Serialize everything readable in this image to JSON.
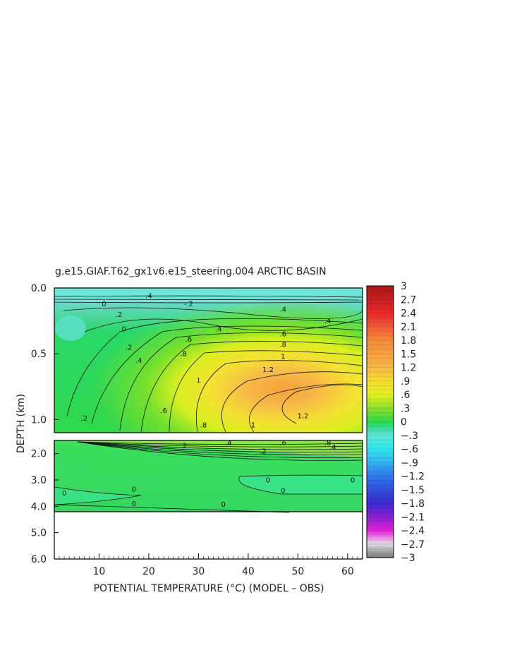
{
  "chart_data": {
    "type": "heatmap",
    "title": "g.e15.GIAF.T62_gx1v6.e15_steering.004 ARCTIC BASIN",
    "xlabel": "POTENTIAL TEMPERATURE (°C) (MODEL – OBS)",
    "ylabel": "DEPTH (km)",
    "xlim": [
      1,
      63
    ],
    "x_ticks": [
      "10",
      "20",
      "30",
      "40",
      "50",
      "60"
    ],
    "x_tick_values": [
      10,
      20,
      30,
      40,
      50,
      60
    ],
    "upper_panel": {
      "ylim": [
        0.0,
        1.1
      ],
      "y_ticks": [
        "0.0",
        "0.5",
        "1.0"
      ],
      "y_tick_values": [
        0.0,
        0.5,
        1.0
      ]
    },
    "lower_panel": {
      "ylim": [
        1.5,
        6.0
      ],
      "y_ticks": [
        "2.0",
        "3.0",
        "4.0",
        "5.0",
        "6.0"
      ],
      "y_tick_values": [
        2.0,
        3.0,
        4.0,
        5.0,
        6.0
      ]
    },
    "colorbar": {
      "labels": [
        "3",
        "2.7",
        "2.4",
        "2.1",
        "1.8",
        "1.5",
        "1.2",
        ".9",
        ".6",
        ".3",
        "0",
        "-.3",
        "-.6",
        "-.9",
        "-1.2",
        "-1.5",
        "-1.8",
        "-2.1",
        "-2.4",
        "-2.7",
        "-3"
      ],
      "min": -3,
      "max": 3
    },
    "contour_labels": [
      {
        "text": ".4",
        "x": 20,
        "y": 0.06
      },
      {
        "text": "0",
        "x": 11,
        "y": 0.12
      },
      {
        "text": "-.2",
        "x": 28,
        "y": 0.12
      },
      {
        "text": ".2",
        "x": 14,
        "y": 0.2
      },
      {
        "text": "0",
        "x": 15,
        "y": 0.31
      },
      {
        "text": ".2",
        "x": 16,
        "y": 0.45
      },
      {
        "text": ".4",
        "x": 18,
        "y": 0.55
      },
      {
        "text": ".4",
        "x": 34,
        "y": 0.31
      },
      {
        "text": ".6",
        "x": 28,
        "y": 0.39
      },
      {
        "text": ".8",
        "x": 27,
        "y": 0.5
      },
      {
        "text": "1",
        "x": 30,
        "y": 0.7
      },
      {
        "text": ".6",
        "x": 23,
        "y": 0.93
      },
      {
        "text": ".8",
        "x": 31,
        "y": 1.04
      },
      {
        "text": ".2",
        "x": 7,
        "y": 0.99
      },
      {
        "text": ".6",
        "x": 47,
        "y": 0.35
      },
      {
        "text": ".8",
        "x": 47,
        "y": 0.43
      },
      {
        "text": "1",
        "x": 47,
        "y": 0.52
      },
      {
        "text": "1.2",
        "x": 44,
        "y": 0.62
      },
      {
        "text": "1.2",
        "x": 51,
        "y": 0.97
      },
      {
        "text": "1",
        "x": 41,
        "y": 1.04
      },
      {
        "text": ".4",
        "x": 47,
        "y": 0.16
      },
      {
        "text": ".4",
        "x": 56,
        "y": 0.25
      },
      {
        "text": ".2",
        "x": 27,
        "y": 1.7
      },
      {
        "text": ".4",
        "x": 36,
        "y": 1.6
      },
      {
        "text": ".6",
        "x": 47,
        "y": 1.58
      },
      {
        "text": ".8",
        "x": 56,
        "y": 1.58
      },
      {
        "text": ".2",
        "x": 43,
        "y": 1.9
      },
      {
        "text": ".4",
        "x": 57,
        "y": 1.75
      },
      {
        "text": "0",
        "x": 44,
        "y": 3.0
      },
      {
        "text": "0",
        "x": 61,
        "y": 3.0
      },
      {
        "text": "0",
        "x": 3,
        "y": 3.5
      },
      {
        "text": "0",
        "x": 17,
        "y": 3.35
      },
      {
        "text": "0",
        "x": 47,
        "y": 3.4
      },
      {
        "text": "0",
        "x": 17,
        "y": 3.9
      },
      {
        "text": "0",
        "x": 35,
        "y": 3.93
      }
    ]
  }
}
